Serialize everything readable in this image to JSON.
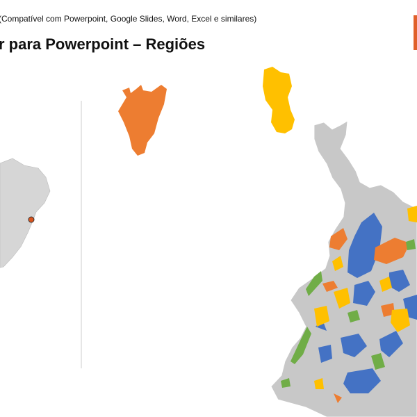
{
  "header": {
    "subtitle": "(Compatível com Powerpoint, Google Slides, Word, Excel e similares)",
    "title": "r para Powerpoint – Regiões"
  }
}
